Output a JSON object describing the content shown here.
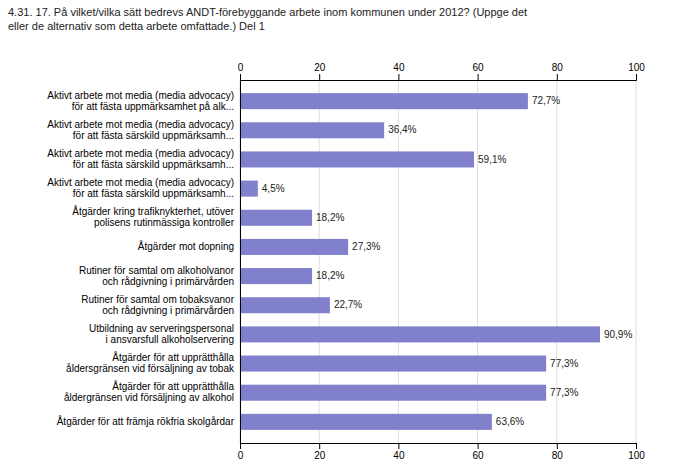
{
  "chart_data": {
    "type": "bar",
    "orientation": "horizontal",
    "title": "4.31. 17. På vilket/vilka sätt bedrevs ANDT-förebyggande arbete inom kommunen under 2012? (Uppge det\neller de alternativ som detta arbete omfattade.) Del 1",
    "categories": [
      "Aktivt arbete mot media (media advocacy)\nför att fästa uppmärksamhet på alk...",
      "Aktivt arbete mot media (media advocacy)\nför att fästa särskild uppmärksamh...",
      "Aktivt arbete mot media (media advocacy)\nför att fästa särskild uppmärksamh...",
      "Aktivt arbete mot media (media advocacy)\nför att fästa särskild uppmärksamh...",
      "Åtgärder kring trafiknykterhet, utöver\npolisens rutinmässiga kontroller",
      "Åtgärder mot dopning",
      "Rutiner för samtal om alkoholvanor\noch rådgivning i primärvården",
      "Rutiner för samtal om tobaksvanor\noch rådgivning i primärvården",
      "Utbildning av serveringspersonal\ni ansvarsfull alkoholservering",
      "Åtgärder för att upprätthålla\nåldersgränsen vid försäljning av tobak",
      "Åtgärder för att upprätthålla\nåldergränsen vid försäljning av alkohol",
      "Åtgärder för att främja rökfria skolgårdar"
    ],
    "values": [
      72.7,
      36.4,
      59.1,
      4.5,
      18.2,
      27.3,
      18.2,
      22.7,
      90.9,
      77.3,
      77.3,
      63.6
    ],
    "value_labels": [
      "72,7%",
      "36,4%",
      "59,1%",
      "4,5%",
      "18,2%",
      "27,3%",
      "18,2%",
      "22,7%",
      "90,9%",
      "77,3%",
      "77,3%",
      "63,6%"
    ],
    "data_labels": true,
    "color": "#8080cc",
    "xlim": [
      0,
      100
    ],
    "xticks": [
      0,
      20,
      40,
      60,
      80,
      100
    ],
    "grid": true
  }
}
